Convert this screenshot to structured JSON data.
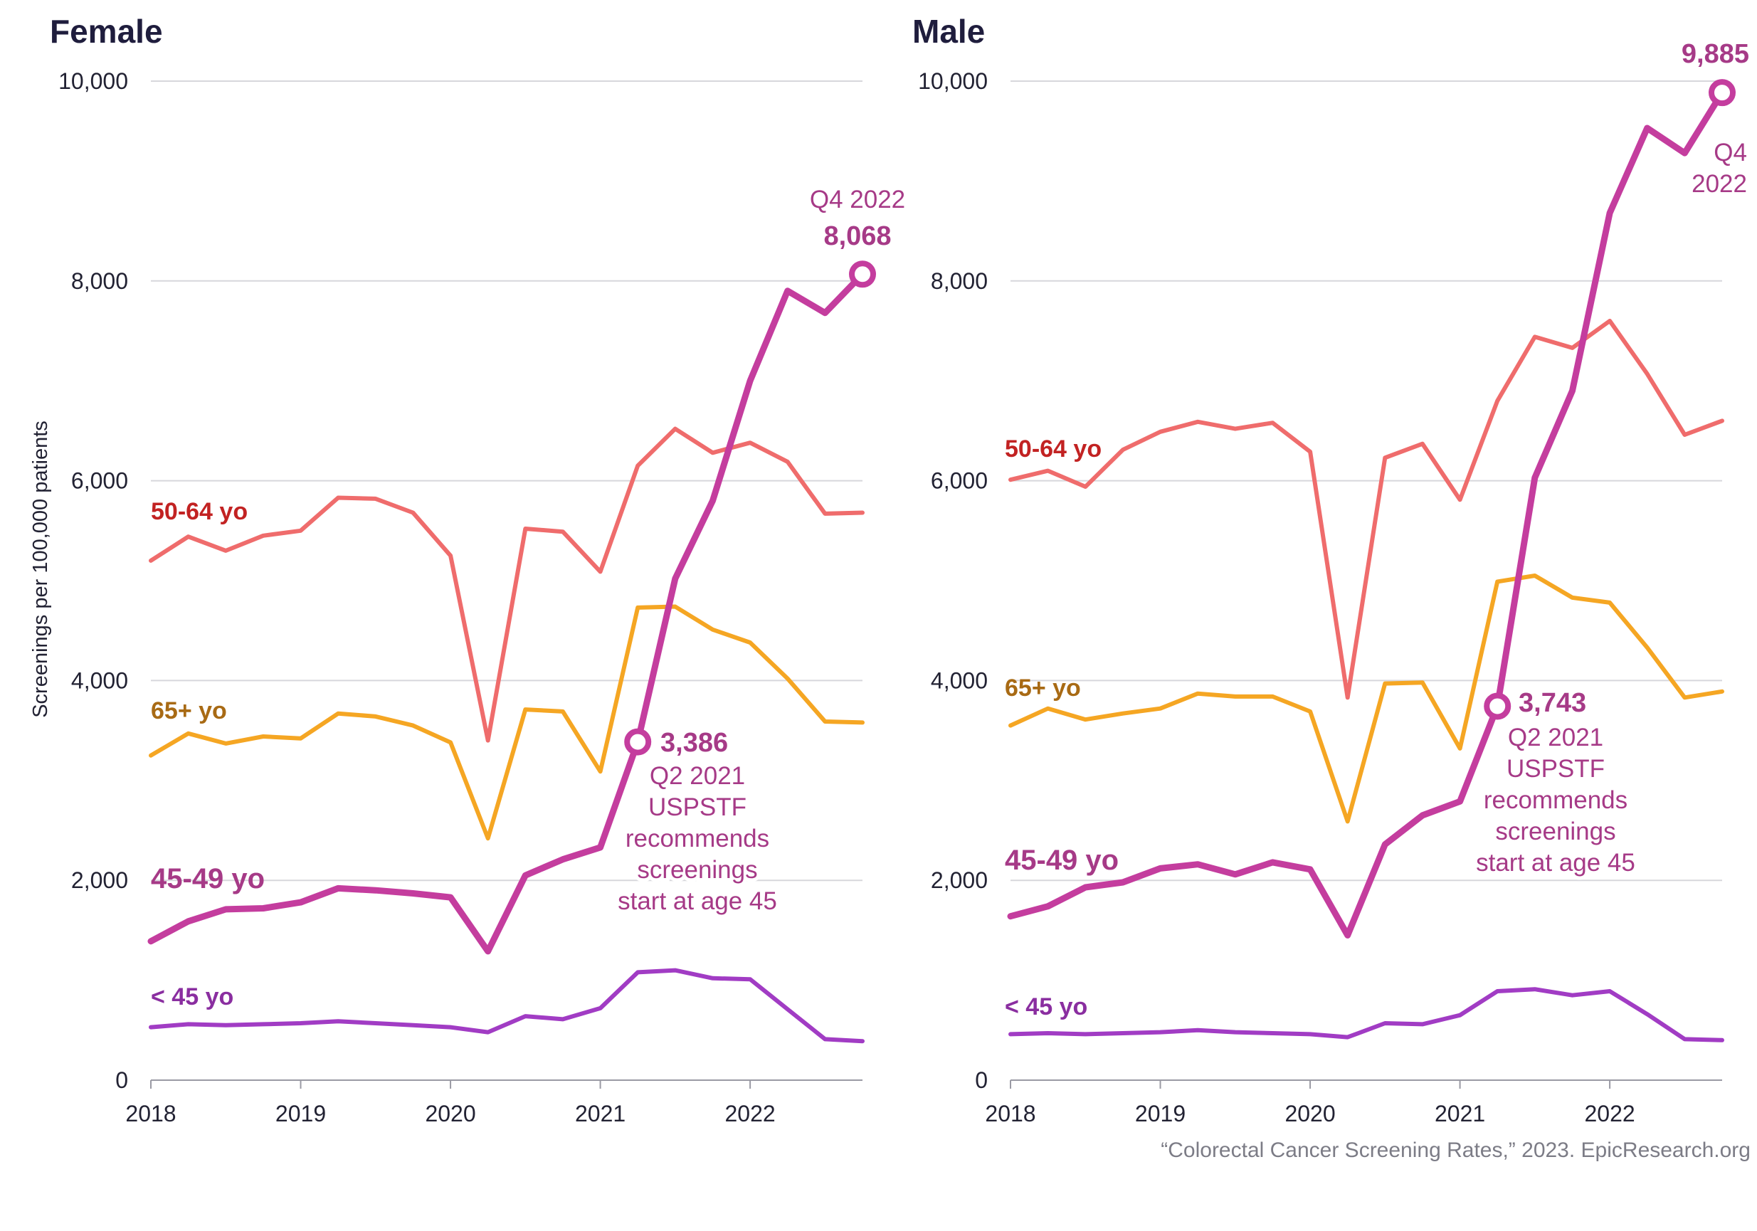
{
  "colors": {
    "50-64": "#ef6c6c",
    "65+": "#f5a623",
    "45-49": "#c43d9e",
    "<45": "#a13cc4",
    "label_50_64": "#c22222",
    "label_65": "#a86a14",
    "label_45_49": "#a63a87",
    "label_lt45": "#8a2ea0",
    "annotation": "#a63a87",
    "grid": "#d7d7dc"
  },
  "chart_data": [
    {
      "type": "line",
      "title": "Female",
      "xlabel": "",
      "ylabel": "Screenings per 100,000 patients",
      "ylim": [
        0,
        10000
      ],
      "yticks": [
        "0",
        "2,000",
        "4,000",
        "6,000",
        "8,000",
        "10,000"
      ],
      "xticks": [
        "2018",
        "2019",
        "2020",
        "2021",
        "2022"
      ],
      "x": [
        2018.0,
        2018.25,
        2018.5,
        2018.75,
        2019.0,
        2019.25,
        2019.5,
        2019.75,
        2020.0,
        2020.25,
        2020.5,
        2020.75,
        2021.0,
        2021.25,
        2021.5,
        2021.75,
        2022.0,
        2022.25,
        2022.5,
        2022.75
      ],
      "grid": true,
      "series": [
        {
          "name": "50-64 yo",
          "color_key": "50-64",
          "label_color_key": "label_50_64",
          "values": [
            5200,
            5440,
            5300,
            5450,
            5500,
            5830,
            5820,
            5680,
            5250,
            3400,
            5520,
            5490,
            5090,
            6150,
            6520,
            6280,
            6380,
            6190,
            5670,
            5680
          ]
        },
        {
          "name": "65+ yo",
          "color_key": "65+",
          "label_color_key": "label_65",
          "values": [
            3250,
            3470,
            3370,
            3440,
            3420,
            3670,
            3640,
            3550,
            3380,
            2420,
            3710,
            3690,
            3090,
            4730,
            4740,
            4510,
            4380,
            4020,
            3590,
            3580
          ]
        },
        {
          "name": "45-49 yo",
          "color_key": "45-49",
          "label_color_key": "label_45_49",
          "values": [
            1390,
            1590,
            1710,
            1720,
            1780,
            1920,
            1900,
            1870,
            1830,
            1290,
            2050,
            2210,
            2330,
            3386,
            5020,
            5800,
            7000,
            7900,
            7680,
            8068
          ]
        },
        {
          "name": "< 45 yo",
          "color_key": "<45",
          "label_color_key": "label_lt45",
          "values": [
            530,
            560,
            550,
            560,
            570,
            590,
            570,
            550,
            530,
            480,
            640,
            610,
            720,
            1080,
            1100,
            1020,
            1010,
            710,
            410,
            390
          ]
        }
      ],
      "annotations": {
        "mid_value": "3,386",
        "mid_lines": [
          "Q2 2021",
          "USPSTF",
          "recommends",
          "screenings",
          "start at age 45"
        ],
        "end_value": "8,068",
        "end_lines": [
          "Q4 2022"
        ]
      }
    },
    {
      "type": "line",
      "title": "Male",
      "xlabel": "",
      "ylabel": "",
      "ylim": [
        0,
        10000
      ],
      "yticks": [
        "0",
        "2,000",
        "4,000",
        "6,000",
        "8,000",
        "10,000"
      ],
      "xticks": [
        "2018",
        "2019",
        "2020",
        "2021",
        "2022"
      ],
      "x": [
        2018.0,
        2018.25,
        2018.5,
        2018.75,
        2019.0,
        2019.25,
        2019.5,
        2019.75,
        2020.0,
        2020.25,
        2020.5,
        2020.75,
        2021.0,
        2021.25,
        2021.5,
        2021.75,
        2022.0,
        2022.25,
        2022.5,
        2022.75
      ],
      "grid": true,
      "series": [
        {
          "name": "50-64 yo",
          "color_key": "50-64",
          "label_color_key": "label_50_64",
          "values": [
            6010,
            6100,
            5940,
            6310,
            6490,
            6590,
            6520,
            6580,
            6290,
            3830,
            6230,
            6370,
            5810,
            6800,
            7440,
            7330,
            7600,
            7070,
            6460,
            6600
          ]
        },
        {
          "name": "65+ yo",
          "color_key": "65+",
          "label_color_key": "label_65",
          "values": [
            3550,
            3720,
            3610,
            3670,
            3720,
            3870,
            3840,
            3840,
            3690,
            2590,
            3970,
            3980,
            3320,
            4990,
            5050,
            4830,
            4780,
            4330,
            3830,
            3890
          ]
        },
        {
          "name": "45-49 yo",
          "color_key": "45-49",
          "label_color_key": "label_45_49",
          "values": [
            1640,
            1740,
            1930,
            1980,
            2120,
            2160,
            2060,
            2180,
            2110,
            1450,
            2360,
            2650,
            2790,
            3743,
            6030,
            6900,
            8680,
            9530,
            9280,
            9885
          ]
        },
        {
          "name": "< 45 yo",
          "color_key": "<45",
          "label_color_key": "label_lt45",
          "values": [
            460,
            470,
            460,
            470,
            480,
            500,
            480,
            470,
            460,
            430,
            570,
            560,
            650,
            890,
            910,
            850,
            890,
            660,
            410,
            400
          ]
        }
      ],
      "annotations": {
        "mid_value": "3,743",
        "mid_lines": [
          "Q2 2021",
          "USPSTF",
          "recommends",
          "screenings",
          "start at age 45"
        ],
        "end_value": "9,885",
        "end_lines": [
          "Q4",
          "2022"
        ]
      }
    }
  ],
  "source": "“Colorectal Cancer Screening Rates,” 2023. EpicResearch.org"
}
